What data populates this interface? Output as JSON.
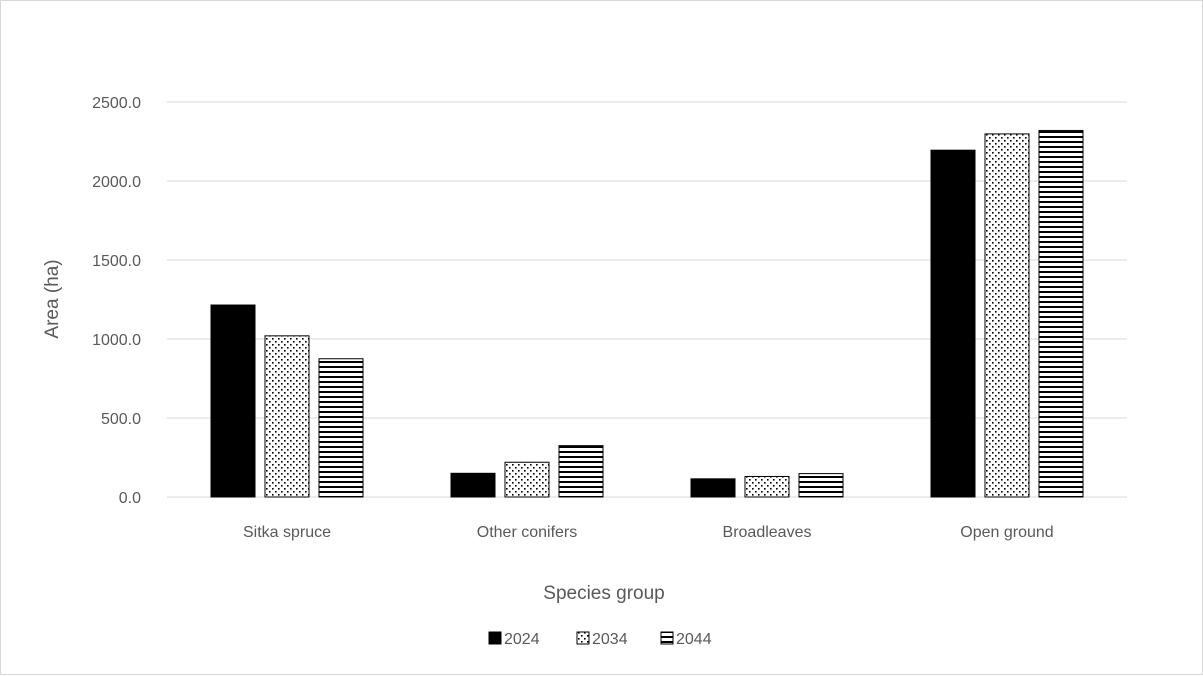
{
  "chart_data": {
    "type": "bar",
    "categories": [
      "Sitka spruce",
      "Other conifers",
      "Broadleaves",
      "Open ground"
    ],
    "series": [
      {
        "name": "2024",
        "values": [
          1215,
          150,
          115,
          2195
        ],
        "pattern": "solid"
      },
      {
        "name": "2034",
        "values": [
          1020,
          220,
          130,
          2298
        ],
        "pattern": "dots"
      },
      {
        "name": "2044",
        "values": [
          875,
          325,
          148,
          2320
        ],
        "pattern": "horizontal-lines"
      }
    ],
    "title": "",
    "xlabel": "Species  group",
    "ylabel": "Area (ha)",
    "ylim": [
      0,
      2500
    ],
    "yticks": [
      "0.0",
      "500.0",
      "1000.0",
      "1500.0",
      "2000.0",
      "2500.0"
    ],
    "grid": "horizontal",
    "legend": "bottom",
    "colors": {
      "bar": "#000000",
      "fill_light": "#ffffff",
      "grid": "#d9d9d9",
      "text": "#595959"
    }
  }
}
